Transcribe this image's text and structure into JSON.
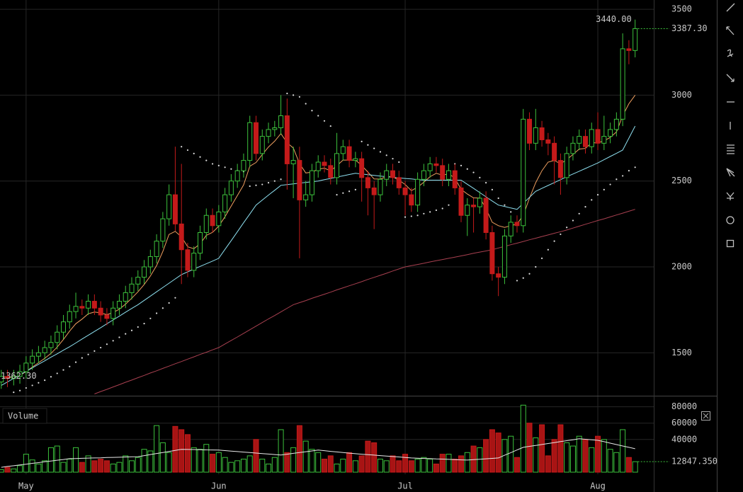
{
  "chart_data": [
    {
      "type": "candlestick",
      "grid": true,
      "xlim": [
        -0.2,
        105
      ],
      "ylim": [
        1254,
        3554
      ],
      "yticks": [
        1500,
        2000,
        2500,
        3000,
        3500
      ],
      "up_color": "#3cc13c",
      "down_color": "#c41a1a",
      "open": [
        1330,
        1362.3,
        1350,
        1362,
        1390,
        1440,
        1480,
        1500,
        1530,
        1560,
        1620,
        1680,
        1740,
        1770,
        1760,
        1800,
        1760,
        1720,
        1700,
        1760,
        1800,
        1850,
        1900,
        1940,
        2000,
        2060,
        2150,
        2280,
        2420,
        2250,
        2100,
        1980,
        2080,
        2200,
        2300,
        2240,
        2320,
        2420,
        2500,
        2560,
        2620,
        2840,
        2660,
        2760,
        2800,
        2810,
        2880,
        2600,
        2620,
        2390,
        2420,
        2560,
        2610,
        2590,
        2520,
        2660,
        2700,
        2620,
        2630,
        2520,
        2460,
        2420,
        2510,
        2560,
        2520,
        2460,
        2420,
        2360,
        2510,
        2560,
        2600,
        2590,
        2510,
        2560,
        2460,
        2300,
        2360,
        2350,
        2400,
        2200,
        1960,
        1940,
        2180,
        2260,
        2240,
        2860,
        2720,
        2810,
        2740,
        2720,
        2620,
        2520,
        2660,
        2720,
        2760,
        2700,
        2800,
        2720,
        2760,
        2800,
        2860,
        3270,
        3260
      ],
      "high": [
        1400,
        1400,
        1400,
        1430,
        1480,
        1520,
        1540,
        1570,
        1600,
        1660,
        1720,
        1780,
        1850,
        1810,
        1840,
        1840,
        1800,
        1760,
        1800,
        1840,
        1890,
        1940,
        1980,
        2040,
        2100,
        2190,
        2320,
        2480,
        2700,
        2600,
        2140,
        2120,
        2240,
        2340,
        2340,
        2360,
        2460,
        2540,
        2600,
        2660,
        2880,
        2880,
        2800,
        2840,
        2850,
        3000,
        2980,
        2700,
        2700,
        2500,
        2600,
        2650,
        2650,
        2630,
        2780,
        2740,
        2740,
        2670,
        2670,
        2560,
        2500,
        2550,
        2600,
        2600,
        2560,
        2500,
        2460,
        2550,
        2600,
        2640,
        2640,
        2630,
        2600,
        2600,
        2500,
        2400,
        2400,
        2440,
        2440,
        2240,
        2000,
        2220,
        2300,
        2300,
        2920,
        2900,
        2920,
        2850,
        2780,
        2760,
        2660,
        2700,
        2760,
        2800,
        2800,
        2840,
        2900,
        2880,
        2840,
        2900,
        3360,
        3320,
        3440
      ],
      "low": [
        1290,
        1300,
        1310,
        1320,
        1350,
        1400,
        1440,
        1460,
        1490,
        1520,
        1580,
        1640,
        1700,
        1720,
        1720,
        1720,
        1680,
        1660,
        1660,
        1720,
        1760,
        1810,
        1860,
        1900,
        1960,
        2020,
        2110,
        2240,
        2210,
        1900,
        1940,
        1940,
        2040,
        2160,
        2200,
        2200,
        2280,
        2380,
        2460,
        2520,
        2580,
        2620,
        2620,
        2720,
        2760,
        2770,
        2450,
        2400,
        2050,
        2350,
        2380,
        2520,
        2550,
        2480,
        2480,
        2620,
        2580,
        2580,
        2380,
        2300,
        2220,
        2380,
        2470,
        2480,
        2420,
        2300,
        2320,
        2320,
        2470,
        2520,
        2550,
        2470,
        2470,
        2420,
        2260,
        2180,
        2200,
        2310,
        2160,
        1920,
        1830,
        1900,
        2140,
        2200,
        2200,
        2680,
        2680,
        2700,
        2650,
        2480,
        2420,
        2480,
        2620,
        2680,
        2660,
        2660,
        2680,
        2680,
        2720,
        2760,
        2820,
        3180,
        3220
      ],
      "close": [
        1362.3,
        1350,
        1362,
        1390,
        1440,
        1480,
        1500,
        1530,
        1560,
        1620,
        1680,
        1740,
        1770,
        1760,
        1800,
        1760,
        1720,
        1700,
        1760,
        1800,
        1850,
        1900,
        1940,
        2000,
        2060,
        2150,
        2280,
        2420,
        2250,
        2100,
        1980,
        2080,
        2200,
        2300,
        2240,
        2320,
        2420,
        2500,
        2560,
        2620,
        2840,
        2660,
        2760,
        2800,
        2810,
        2880,
        2600,
        2620,
        2390,
        2420,
        2560,
        2610,
        2590,
        2520,
        2660,
        2700,
        2620,
        2630,
        2520,
        2460,
        2420,
        2510,
        2560,
        2520,
        2460,
        2420,
        2360,
        2510,
        2560,
        2600,
        2590,
        2510,
        2560,
        2460,
        2300,
        2360,
        2350,
        2400,
        2200,
        1960,
        1940,
        2180,
        2260,
        2240,
        2860,
        2720,
        2810,
        2740,
        2720,
        2620,
        2520,
        2660,
        2720,
        2760,
        2700,
        2800,
        2720,
        2760,
        2800,
        2860,
        3270,
        3260,
        3387.3
      ],
      "lines": [
        {
          "color": "#f0a060",
          "style": "line",
          "values": [
            1360,
            1357,
            1358,
            1368,
            1390,
            1417,
            1442,
            1468,
            1496,
            1533,
            1577,
            1626,
            1669,
            1696,
            1727,
            1737,
            1732,
            1722,
            1734,
            1754,
            1783,
            1818,
            1855,
            1898,
            1947,
            2008,
            2090,
            2189,
            2207,
            2175,
            2117,
            2106,
            2134,
            2184,
            2201,
            2237,
            2292,
            2354,
            2416,
            2477,
            2586,
            2608,
            2654,
            2698,
            2732,
            2776,
            2723,
            2692,
            2602,
            2547,
            2551,
            2569,
            2575,
            2559,
            2589,
            2622,
            2622,
            2622,
            2591,
            2552,
            2512,
            2511,
            2526,
            2524,
            2505,
            2480,
            2444,
            2464,
            2493,
            2525,
            2545,
            2534,
            2542,
            2517,
            2452,
            2424,
            2402,
            2401,
            2341,
            2260,
            2240,
            2230,
            2240,
            2250,
            2300,
            2400,
            2490,
            2560,
            2610,
            2620,
            2600,
            2625,
            2654,
            2686,
            2690,
            2723,
            2722,
            2734,
            2754,
            2786,
            2880,
            2950,
            3000
          ]
        },
        {
          "color": "#8ee0f0",
          "style": "line",
          "values": [
            1310,
            1330,
            1351,
            1371,
            1392,
            1412,
            1433,
            1453,
            1474,
            1494,
            1515,
            1535,
            1557,
            1580,
            1602,
            1624,
            1646,
            1669,
            1691,
            1713,
            1736,
            1758,
            1780,
            1805,
            1830,
            1855,
            1880,
            1905,
            1930,
            1955,
            1971,
            1987,
            2003,
            2018,
            2034,
            2050,
            2102,
            2153,
            2205,
            2257,
            2308,
            2360,
            2389,
            2418,
            2446,
            2475,
            2479,
            2483,
            2488,
            2492,
            2496,
            2500,
            2508,
            2515,
            2523,
            2530,
            2538,
            2545,
            2541,
            2537,
            2533,
            2529,
            2525,
            2522,
            2518,
            2515,
            2512,
            2508,
            2505,
            2505,
            2505,
            2505,
            2505,
            2505,
            2505,
            2481,
            2457,
            2433,
            2408,
            2384,
            2360,
            2352,
            2343,
            2335,
            2370,
            2405,
            2440,
            2457,
            2474,
            2491,
            2508,
            2525,
            2541,
            2557,
            2573,
            2589,
            2605,
            2624,
            2643,
            2661,
            2680,
            2750,
            2820
          ]
        },
        {
          "color": "#a84050",
          "style": "line",
          "values": [
            null,
            null,
            null,
            null,
            null,
            null,
            null,
            null,
            null,
            null,
            null,
            null,
            null,
            null,
            null,
            1260,
            1274,
            1287,
            1301,
            1314,
            1328,
            1341,
            1355,
            1368,
            1382,
            1395,
            1409,
            1422,
            1436,
            1449,
            1463,
            1476,
            1490,
            1503,
            1517,
            1530,
            1551,
            1572,
            1592,
            1613,
            1634,
            1655,
            1676,
            1697,
            1717,
            1738,
            1759,
            1780,
            1792,
            1804,
            1817,
            1829,
            1841,
            1853,
            1866,
            1878,
            1890,
            1902,
            1914,
            1927,
            1939,
            1951,
            1963,
            1976,
            1988,
            2000,
            2007,
            2014,
            2021,
            2029,
            2036,
            2043,
            2050,
            2057,
            2064,
            2071,
            2079,
            2086,
            2093,
            2100,
            2110,
            2119,
            2129,
            2138,
            2148,
            2158,
            2167,
            2177,
            2186,
            2196,
            2205,
            2215,
            2226,
            2237,
            2248,
            2259,
            2270,
            2280,
            2291,
            2302,
            2313,
            2324,
            2335
          ]
        },
        {
          "color": "#dddddd",
          "style": "dots",
          "values": [
            null,
            null,
            1270,
            1280,
            1295,
            1310,
            1325,
            1340,
            1360,
            1380,
            1400,
            1420,
            1445,
            1470,
            1490,
            1510,
            1530,
            1550,
            1570,
            1590,
            1610,
            1630,
            1650,
            1670,
            1700,
            1730,
            1760,
            1790,
            1820,
            2700,
            2680,
            2660,
            2640,
            2620,
            2600,
            2590,
            2580,
            2570,
            2560,
            2555,
            2470,
            2475,
            2480,
            2490,
            2500,
            2510,
            3010,
            3000,
            2990,
            2950,
            2910,
            2880,
            2850,
            2820,
            2420,
            2430,
            2440,
            2450,
            2730,
            2710,
            2690,
            2670,
            2650,
            2630,
            2610,
            2290,
            2295,
            2300,
            2310,
            2320,
            2330,
            2340,
            2360,
            2600,
            2590,
            2570,
            2550,
            2520,
            2490,
            2450,
            2400,
            2360,
            2320,
            1920,
            1935,
            1960,
            2000,
            2050,
            2100,
            2150,
            2190,
            2230,
            2270,
            2310,
            2350,
            2390,
            2420,
            2450,
            2480,
            2510,
            2530,
            2560,
            2580
          ]
        }
      ],
      "annotations": [
        {
          "value": 3440,
          "label": "3440.00"
        },
        {
          "value": 3387.3,
          "label": "3387.30"
        },
        {
          "value": 1362.3,
          "label": "1362.30"
        }
      ]
    },
    {
      "type": "bar",
      "title": "Volume",
      "grid": true,
      "xlim": [
        -0.2,
        105
      ],
      "ylim": [
        0,
        84000
      ],
      "yticks": [
        40000,
        60000,
        80000
      ],
      "xticks": [
        {
          "value": 4,
          "label": "May"
        },
        {
          "value": 35,
          "label": "Jun"
        },
        {
          "value": 65,
          "label": "Jul"
        },
        {
          "value": 96,
          "label": "Aug"
        }
      ],
      "values": [
        3000,
        6000,
        4000,
        8000,
        22000,
        15000,
        10000,
        14000,
        30000,
        32000,
        12000,
        16000,
        30000,
        12000,
        20000,
        14000,
        16000,
        14000,
        10000,
        12000,
        20000,
        14000,
        18000,
        28000,
        26000,
        57000,
        36000,
        24000,
        56000,
        52000,
        46000,
        30000,
        28000,
        34000,
        22000,
        24000,
        18000,
        12000,
        14000,
        16000,
        20000,
        40000,
        16000,
        10000,
        18000,
        52000,
        24000,
        30000,
        57000,
        38000,
        28000,
        24000,
        16000,
        20000,
        10000,
        16000,
        24000,
        14000,
        20000,
        38000,
        36000,
        16000,
        14000,
        20000,
        14000,
        22000,
        14000,
        16000,
        18000,
        16000,
        10000,
        22000,
        22000,
        16000,
        20000,
        24000,
        32000,
        30000,
        40000,
        52000,
        48000,
        40000,
        44000,
        18000,
        82000,
        60000,
        42000,
        58000,
        20000,
        40000,
        58000,
        36000,
        32000,
        44000,
        40000,
        30000,
        44000,
        40000,
        28000,
        24000,
        52000,
        18000,
        12847.35
      ],
      "average": {
        "color": "#e8e8e8",
        "values": [
          6000,
          7000,
          7900,
          8900,
          9800,
          10800,
          11700,
          12700,
          13600,
          14600,
          15500,
          16500,
          16700,
          17000,
          17200,
          17400,
          17600,
          17900,
          18100,
          18300,
          18500,
          18800,
          19000,
          20300,
          21600,
          22900,
          24100,
          25400,
          26700,
          28000,
          27800,
          27700,
          27500,
          27300,
          27200,
          27000,
          26400,
          25800,
          25200,
          24600,
          24000,
          23400,
          22800,
          22200,
          21600,
          21000,
          22000,
          23000,
          24000,
          25000,
          26000,
          27000,
          26300,
          25500,
          24800,
          24100,
          23300,
          22600,
          22000,
          21400,
          20900,
          20300,
          19700,
          19100,
          18600,
          18000,
          17400,
          17100,
          16800,
          16500,
          16200,
          16000,
          15700,
          15400,
          15100,
          14800,
          15300,
          15800,
          16400,
          16900,
          17400,
          20700,
          23900,
          27200,
          30400,
          31600,
          32700,
          33900,
          35100,
          36200,
          37400,
          38500,
          39700,
          40900,
          40300,
          39600,
          39000,
          37300,
          35500,
          33800,
          32000,
          30400,
          28700
        ]
      },
      "annotations": [
        {
          "value": 12847.35,
          "label": "12847.350"
        }
      ]
    }
  ]
}
